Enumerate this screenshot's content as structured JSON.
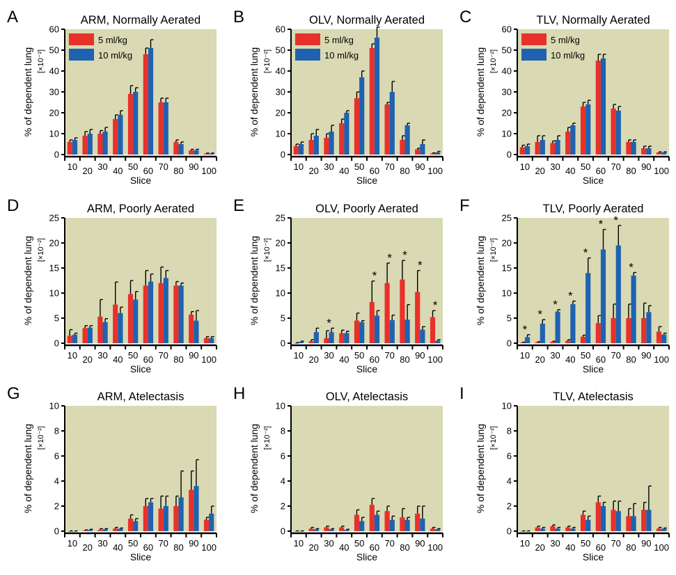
{
  "figure": {
    "colors": {
      "plot_bg": "#d9d9b3",
      "series_5": "#e8312a",
      "series_10": "#1f62b0",
      "axis": "#000000"
    },
    "legend_labels": [
      "5 ml/kg",
      "10 ml/kg"
    ]
  },
  "chart_data": [
    {
      "panel": "A",
      "type": "bar",
      "title": "ARM, Normally Aerated",
      "xlabel": "Slice",
      "ylabel": "% of dependent lung",
      "yunit": "[×10⁻²]",
      "categories": [
        "10",
        "20",
        "30",
        "40",
        "50",
        "60",
        "70",
        "80",
        "90",
        "100"
      ],
      "ylim": [
        0,
        60
      ],
      "yticks": [
        0,
        10,
        20,
        30,
        40,
        50,
        60
      ],
      "legend": "top-left",
      "series": [
        {
          "name": "5 ml/kg",
          "values": [
            6,
            9,
            10,
            17,
            29,
            48,
            25,
            6,
            2,
            0.5
          ],
          "errors": [
            1,
            2,
            1.5,
            2,
            4,
            3,
            2,
            1,
            0.5,
            0.2
          ]
        },
        {
          "name": "10 ml/kg",
          "values": [
            7,
            10,
            11,
            19,
            30,
            51,
            25,
            5,
            2,
            0.5
          ],
          "errors": [
            1,
            2,
            2,
            2,
            2,
            4,
            2,
            1,
            0.5,
            0.2
          ]
        }
      ],
      "stars": []
    },
    {
      "panel": "B",
      "type": "bar",
      "title": "OLV, Normally Aerated",
      "xlabel": "Slice",
      "ylabel": "% of dependent lung",
      "yunit": "[×10⁻²]",
      "categories": [
        "10",
        "20",
        "30",
        "40",
        "50",
        "60",
        "70",
        "80",
        "90",
        "100"
      ],
      "ylim": [
        0,
        60
      ],
      "yticks": [
        0,
        10,
        20,
        30,
        40,
        50,
        60
      ],
      "legend": "top-left",
      "series": [
        {
          "name": "5 ml/kg",
          "values": [
            4,
            7,
            8,
            15,
            27,
            51,
            24,
            7,
            2.5,
            0.5
          ],
          "errors": [
            1,
            3,
            2,
            2,
            3,
            2,
            1,
            2,
            0.5,
            0.3
          ]
        },
        {
          "name": "10 ml/kg",
          "values": [
            5,
            9,
            11,
            20,
            37,
            56,
            30,
            14,
            5,
            1
          ],
          "errors": [
            1,
            3,
            3,
            1,
            3,
            5,
            5,
            1,
            2,
            0.5
          ]
        }
      ],
      "stars": []
    },
    {
      "panel": "C",
      "type": "bar",
      "title": "TLV, Normally Aerated",
      "xlabel": "Slice",
      "ylabel": "% of dependent lung",
      "yunit": "[×10⁻²]",
      "categories": [
        "10",
        "20",
        "30",
        "40",
        "50",
        "60",
        "70",
        "80",
        "90",
        "100"
      ],
      "ylim": [
        0,
        60
      ],
      "yticks": [
        0,
        10,
        20,
        30,
        40,
        50,
        60
      ],
      "legend": "top-left",
      "series": [
        {
          "name": "5 ml/kg",
          "values": [
            3.5,
            6,
            5.5,
            11,
            23,
            45,
            22,
            6,
            3,
            1
          ],
          "errors": [
            1,
            3,
            1,
            2,
            2,
            3,
            2,
            1,
            1,
            0.3
          ]
        },
        {
          "name": "10 ml/kg",
          "values": [
            4,
            7,
            7,
            14,
            24,
            46,
            21,
            6,
            3,
            1
          ],
          "errors": [
            1,
            2,
            2,
            1,
            2,
            2,
            2,
            1,
            1,
            0.3
          ]
        }
      ],
      "stars": []
    },
    {
      "panel": "D",
      "type": "bar",
      "title": "ARM, Poorly Aerated",
      "xlabel": "Slice",
      "ylabel": "% of dependent lung",
      "yunit": "[×10⁻²]",
      "categories": [
        "10",
        "20",
        "30",
        "40",
        "50",
        "60",
        "70",
        "80",
        "90",
        "100"
      ],
      "ylim": [
        0,
        25
      ],
      "yticks": [
        0,
        5,
        10,
        15,
        20,
        25
      ],
      "legend": "none",
      "series": [
        {
          "name": "5 ml/kg",
          "values": [
            1.5,
            3,
            5.3,
            7.7,
            9.8,
            11.5,
            12,
            11.5,
            5.7,
            1
          ],
          "errors": [
            1.2,
            0.5,
            3.4,
            4.5,
            2.7,
            3,
            3.2,
            0.8,
            0.6,
            0.3
          ]
        },
        {
          "name": "10 ml/kg",
          "values": [
            1.7,
            3.1,
            4.2,
            6,
            8.7,
            12.3,
            13,
            11.5,
            4.5,
            1
          ],
          "errors": [
            0.3,
            0.4,
            0.7,
            1.2,
            1.6,
            1.5,
            1.5,
            0.5,
            2,
            0.3
          ]
        }
      ],
      "stars": []
    },
    {
      "panel": "E",
      "type": "bar",
      "title": "OLV, Poorly Aerated",
      "xlabel": "Slice",
      "ylabel": "% of dependent lung",
      "yunit": "[×10⁻²]",
      "categories": [
        "10",
        "20",
        "30",
        "40",
        "50",
        "60",
        "70",
        "80",
        "90",
        "100"
      ],
      "ylim": [
        0,
        25
      ],
      "yticks": [
        0,
        5,
        10,
        15,
        20,
        25
      ],
      "legend": "none",
      "series": [
        {
          "name": "5 ml/kg",
          "values": [
            0,
            0.4,
            1,
            2,
            4.5,
            8.2,
            12,
            12.7,
            10.2,
            5.2
          ],
          "errors": [
            0.1,
            0.3,
            1.5,
            0.6,
            1.5,
            4.2,
            4,
            3.8,
            4.3,
            1.3
          ]
        },
        {
          "name": "10 ml/kg",
          "values": [
            0.3,
            2.2,
            2.2,
            2,
            4.2,
            5.5,
            4.6,
            4.7,
            2.7,
            0.5
          ],
          "errors": [
            0.1,
            0.8,
            0.8,
            0.4,
            0.3,
            1,
            1,
            3,
            0.6,
            0.2
          ]
        }
      ],
      "stars": [
        {
          "category": "30",
          "label": "*"
        },
        {
          "category": "60",
          "label": "*"
        },
        {
          "category": "70",
          "label": "*"
        },
        {
          "category": "80",
          "label": "*"
        },
        {
          "category": "90",
          "label": "*"
        },
        {
          "category": "100",
          "label": "*"
        }
      ]
    },
    {
      "panel": "F",
      "type": "bar",
      "title": "TLV, Poorly Aerated",
      "xlabel": "Slice",
      "ylabel": "% of dependent lung",
      "yunit": "[×10⁻²]",
      "categories": [
        "10",
        "20",
        "30",
        "40",
        "50",
        "60",
        "70",
        "80",
        "90",
        "100"
      ],
      "ylim": [
        0,
        25
      ],
      "yticks": [
        0,
        5,
        10,
        15,
        20,
        25
      ],
      "legend": "none",
      "series": [
        {
          "name": "5 ml/kg",
          "values": [
            0.1,
            0.2,
            0.3,
            0.5,
            1.3,
            4,
            5,
            5,
            5,
            2.3
          ],
          "errors": [
            0.1,
            0.1,
            0.1,
            0.2,
            0.3,
            1.5,
            2.8,
            2.8,
            3,
            1
          ]
        },
        {
          "name": "10 ml/kg",
          "values": [
            1.2,
            3.9,
            6.3,
            7.8,
            14,
            18.7,
            19.5,
            13.5,
            6.2,
            1.7
          ],
          "errors": [
            0.5,
            0.8,
            0.4,
            0.6,
            3,
            4,
            4,
            0.6,
            1.3,
            0.3
          ]
        }
      ],
      "stars": [
        {
          "category": "10",
          "label": "*"
        },
        {
          "category": "20",
          "label": "*"
        },
        {
          "category": "30",
          "label": "*"
        },
        {
          "category": "40",
          "label": "*"
        },
        {
          "category": "50",
          "label": "*"
        },
        {
          "category": "60",
          "label": "*"
        },
        {
          "category": "70",
          "label": "*"
        },
        {
          "category": "80",
          "label": "*"
        }
      ]
    },
    {
      "panel": "G",
      "type": "bar",
      "title": "ARM, Atelectasis",
      "xlabel": "Slice",
      "ylabel": "% of dependent lung",
      "yunit": "[×10⁻²]",
      "categories": [
        "10",
        "20",
        "30",
        "40",
        "50",
        "60",
        "70",
        "80",
        "90",
        "100"
      ],
      "ylim": [
        0,
        10
      ],
      "yticks": [
        0,
        2,
        4,
        6,
        8,
        10
      ],
      "legend": "none",
      "series": [
        {
          "name": "5 ml/kg",
          "values": [
            0,
            0.05,
            0.1,
            0.2,
            1,
            2,
            1.8,
            2,
            3.3,
            0.9
          ],
          "errors": [
            0.02,
            0.05,
            0.1,
            0.1,
            0.3,
            0.6,
            1,
            0.8,
            1.5,
            0.2
          ]
        },
        {
          "name": "10 ml/kg",
          "values": [
            0,
            0.1,
            0.15,
            0.2,
            0.8,
            2.3,
            2,
            2.7,
            3.6,
            1.4
          ],
          "errors": [
            0.02,
            0.05,
            0.05,
            0.05,
            0.2,
            0.3,
            0.8,
            2.1,
            2.1,
            0.6
          ]
        }
      ],
      "stars": []
    },
    {
      "panel": "H",
      "type": "bar",
      "title": "OLV, Atelectasis",
      "xlabel": "Slice",
      "ylabel": "% of dependent lung",
      "yunit": "[×10⁻²]",
      "categories": [
        "10",
        "20",
        "30",
        "40",
        "50",
        "60",
        "70",
        "80",
        "90",
        "100"
      ],
      "ylim": [
        0,
        10
      ],
      "yticks": [
        0,
        2,
        4,
        6,
        8,
        10
      ],
      "legend": "none",
      "series": [
        {
          "name": "5 ml/kg",
          "values": [
            0,
            0.2,
            0.3,
            0.3,
            1.3,
            2.1,
            1.6,
            1.1,
            1.4,
            0.2
          ],
          "errors": [
            0.02,
            0.1,
            0.1,
            0.1,
            0.4,
            0.5,
            0.4,
            0.7,
            0.6,
            0.1
          ]
        },
        {
          "name": "10 ml/kg",
          "values": [
            0,
            0.15,
            0.15,
            0.1,
            0.8,
            1.3,
            0.9,
            0.9,
            1,
            0.15
          ],
          "errors": [
            0.02,
            0.05,
            0.05,
            0.05,
            0.3,
            0.3,
            0.3,
            0.2,
            1,
            0.05
          ]
        }
      ],
      "stars": []
    },
    {
      "panel": "I",
      "type": "bar",
      "title": "TLV, Atelectasis",
      "xlabel": "Slice",
      "ylabel": "% of dependent lung",
      "yunit": "[×10⁻²]",
      "categories": [
        "10",
        "20",
        "30",
        "40",
        "50",
        "60",
        "70",
        "80",
        "90",
        "100"
      ],
      "ylim": [
        0,
        10
      ],
      "yticks": [
        0,
        2,
        4,
        6,
        8,
        10
      ],
      "legend": "none",
      "series": [
        {
          "name": "5 ml/kg",
          "values": [
            0,
            0.3,
            0.4,
            0.3,
            1.3,
            2.3,
            1.7,
            1.2,
            1.7,
            0.2
          ],
          "errors": [
            0.02,
            0.1,
            0.1,
            0.1,
            0.3,
            0.5,
            0.7,
            0.6,
            0.6,
            0.1
          ]
        },
        {
          "name": "10 ml/kg",
          "values": [
            0,
            0.2,
            0.2,
            0.2,
            0.9,
            2,
            1.6,
            1.2,
            1.7,
            0.2
          ],
          "errors": [
            0.02,
            0.1,
            0.1,
            0.1,
            0.3,
            0.3,
            0.8,
            1,
            1.9,
            0.05
          ]
        }
      ],
      "stars": []
    }
  ]
}
